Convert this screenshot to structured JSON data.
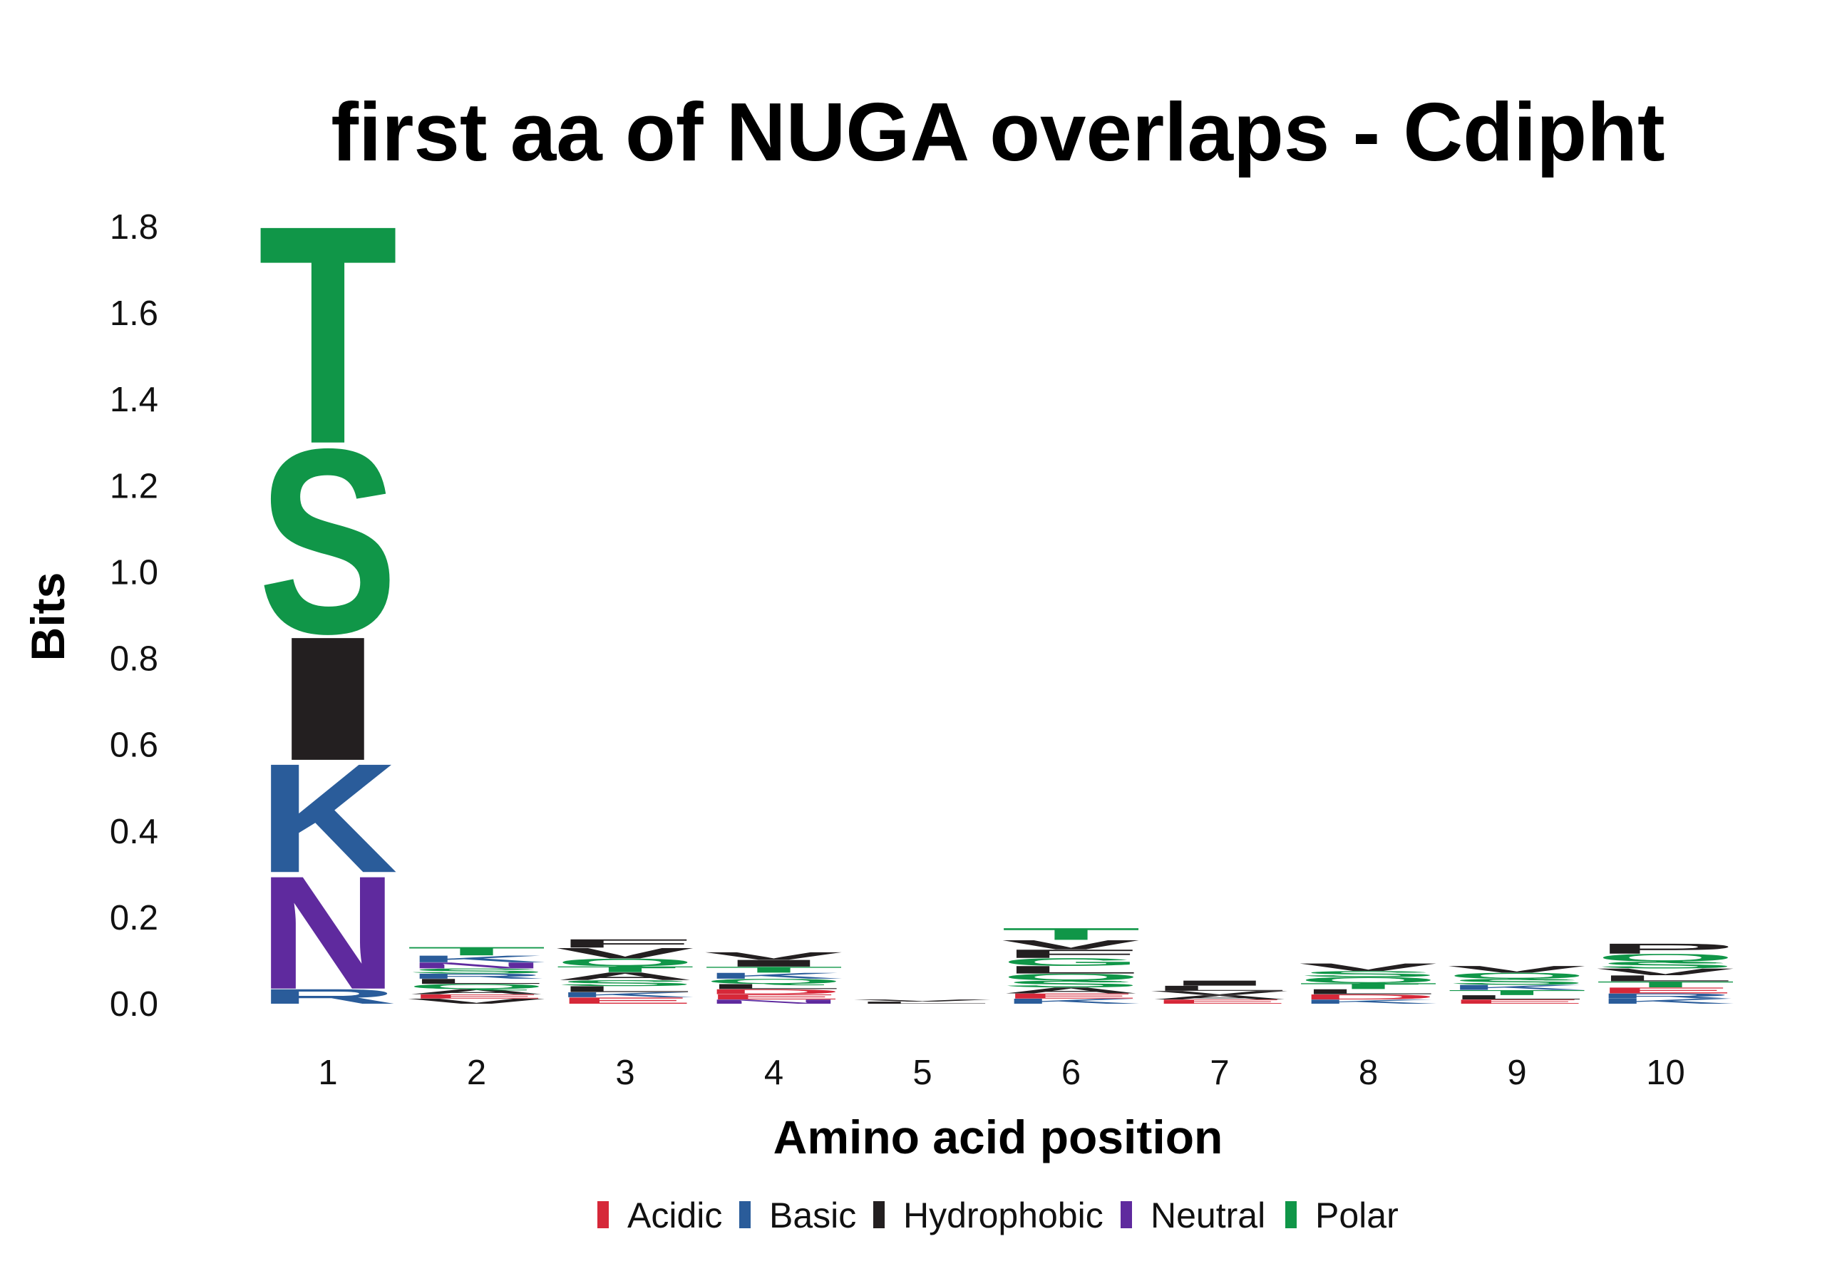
{
  "chart_data": {
    "type": "sequence-logo",
    "title": "first aa of NUGA overlaps - Cdipht",
    "xlabel": "Amino acid position",
    "ylabel": "Bits",
    "ylim": [
      0,
      1.8
    ],
    "yticks": [
      "0.0",
      "0.2",
      "0.4",
      "0.6",
      "0.8",
      "1.0",
      "1.2",
      "1.4",
      "1.6",
      "1.8"
    ],
    "positions": [
      "1",
      "2",
      "3",
      "4",
      "5",
      "6",
      "7",
      "8",
      "9",
      "10"
    ],
    "colors": {
      "Acidic": "#d62839",
      "Basic": "#2a5c9a",
      "Hydrophobic": "#231f20",
      "Neutral": "#5f2a9e",
      "Polar": "#109648"
    },
    "legend": [
      "Acidic",
      "Basic",
      "Hydrophobic",
      "Neutral",
      "Polar"
    ],
    "stacks": [
      {
        "position": "1",
        "letters": [
          {
            "aa": "R",
            "class": "Basic",
            "bits": 0.035
          },
          {
            "aa": "N",
            "class": "Neutral",
            "bits": 0.27
          },
          {
            "aa": "K",
            "class": "Basic",
            "bits": 0.26
          },
          {
            "aa": "I",
            "class": "Hydrophobic",
            "bits": 0.295
          },
          {
            "aa": "S",
            "class": "Polar",
            "bits": 0.44
          },
          {
            "aa": "T",
            "class": "Polar",
            "bits": 0.52
          }
        ]
      },
      {
        "position": "2",
        "letters": [
          {
            "aa": "V",
            "class": "Hydrophobic",
            "bits": 0.012
          },
          {
            "aa": "E",
            "class": "Acidic",
            "bits": 0.01
          },
          {
            "aa": "A",
            "class": "Hydrophobic",
            "bits": 0.012
          },
          {
            "aa": "Q",
            "class": "Polar",
            "bits": 0.012
          },
          {
            "aa": "L",
            "class": "Hydrophobic",
            "bits": 0.012
          },
          {
            "aa": "R",
            "class": "Basic",
            "bits": 0.012
          },
          {
            "aa": "S",
            "class": "Polar",
            "bits": 0.012
          },
          {
            "aa": "N",
            "class": "Neutral",
            "bits": 0.014
          },
          {
            "aa": "K",
            "class": "Basic",
            "bits": 0.016
          },
          {
            "aa": "T",
            "class": "Polar",
            "bits": 0.02
          }
        ]
      },
      {
        "position": "3",
        "letters": [
          {
            "aa": "E",
            "class": "Acidic",
            "bits": 0.015
          },
          {
            "aa": "K",
            "class": "Basic",
            "bits": 0.012
          },
          {
            "aa": "L",
            "class": "Hydrophobic",
            "bits": 0.014
          },
          {
            "aa": "S",
            "class": "Polar",
            "bits": 0.014
          },
          {
            "aa": "A",
            "class": "Hydrophobic",
            "bits": 0.018
          },
          {
            "aa": "T",
            "class": "Polar",
            "bits": 0.014
          },
          {
            "aa": "Q",
            "class": "Polar",
            "bits": 0.018
          },
          {
            "aa": "V",
            "class": "Hydrophobic",
            "bits": 0.025
          },
          {
            "aa": "F",
            "class": "Hydrophobic",
            "bits": 0.02
          }
        ]
      },
      {
        "position": "4",
        "letters": [
          {
            "aa": "N",
            "class": "Neutral",
            "bits": 0.01
          },
          {
            "aa": "E",
            "class": "Acidic",
            "bits": 0.012
          },
          {
            "aa": "D",
            "class": "Acidic",
            "bits": 0.012
          },
          {
            "aa": "L",
            "class": "Hydrophobic",
            "bits": 0.012
          },
          {
            "aa": "Q",
            "class": "Polar",
            "bits": 0.012
          },
          {
            "aa": "K",
            "class": "Basic",
            "bits": 0.014
          },
          {
            "aa": "T",
            "class": "Polar",
            "bits": 0.014
          },
          {
            "aa": "I",
            "class": "Hydrophobic",
            "bits": 0.016
          },
          {
            "aa": "V",
            "class": "Hydrophobic",
            "bits": 0.018
          }
        ]
      },
      {
        "position": "5",
        "letters": [
          {
            "aa": "L",
            "class": "Hydrophobic",
            "bits": 0.005
          },
          {
            "aa": "V",
            "class": "Hydrophobic",
            "bits": 0.005
          }
        ]
      },
      {
        "position": "6",
        "letters": [
          {
            "aa": "K",
            "class": "Basic",
            "bits": 0.012
          },
          {
            "aa": "E",
            "class": "Acidic",
            "bits": 0.012
          },
          {
            "aa": "A",
            "class": "Hydrophobic",
            "bits": 0.014
          },
          {
            "aa": "S",
            "class": "Polar",
            "bits": 0.016
          },
          {
            "aa": "Q",
            "class": "Polar",
            "bits": 0.016
          },
          {
            "aa": "L",
            "class": "Hydrophobic",
            "bits": 0.018
          },
          {
            "aa": "G",
            "class": "Polar",
            "bits": 0.018
          },
          {
            "aa": "F",
            "class": "Hydrophobic",
            "bits": 0.02
          },
          {
            "aa": "V",
            "class": "Hydrophobic",
            "bits": 0.022
          },
          {
            "aa": "T",
            "class": "Polar",
            "bits": 0.028
          }
        ]
      },
      {
        "position": "7",
        "letters": [
          {
            "aa": "E",
            "class": "Acidic",
            "bits": 0.01
          },
          {
            "aa": "A",
            "class": "Hydrophobic",
            "bits": 0.01
          },
          {
            "aa": "V",
            "class": "Hydrophobic",
            "bits": 0.01
          },
          {
            "aa": "L",
            "class": "Hydrophobic",
            "bits": 0.012
          },
          {
            "aa": "I",
            "class": "Hydrophobic",
            "bits": 0.012
          }
        ]
      },
      {
        "position": "8",
        "letters": [
          {
            "aa": "K",
            "class": "Basic",
            "bits": 0.01
          },
          {
            "aa": "D",
            "class": "Acidic",
            "bits": 0.012
          },
          {
            "aa": "L",
            "class": "Hydrophobic",
            "bits": 0.012
          },
          {
            "aa": "T",
            "class": "Polar",
            "bits": 0.014
          },
          {
            "aa": "Q",
            "class": "Polar",
            "bits": 0.014
          },
          {
            "aa": "S",
            "class": "Polar",
            "bits": 0.014
          },
          {
            "aa": "V",
            "class": "Hydrophobic",
            "bits": 0.018
          }
        ]
      },
      {
        "position": "9",
        "letters": [
          {
            "aa": "E",
            "class": "Acidic",
            "bits": 0.01
          },
          {
            "aa": "L",
            "class": "Hydrophobic",
            "bits": 0.01
          },
          {
            "aa": "T",
            "class": "Polar",
            "bits": 0.012
          },
          {
            "aa": "K",
            "class": "Basic",
            "bits": 0.012
          },
          {
            "aa": "S",
            "class": "Polar",
            "bits": 0.014
          },
          {
            "aa": "Q",
            "class": "Polar",
            "bits": 0.014
          },
          {
            "aa": "V",
            "class": "Hydrophobic",
            "bits": 0.016
          }
        ]
      },
      {
        "position": "10",
        "letters": [
          {
            "aa": "K",
            "class": "Basic",
            "bits": 0.012
          },
          {
            "aa": "R",
            "class": "Basic",
            "bits": 0.012
          },
          {
            "aa": "E",
            "class": "Acidic",
            "bits": 0.014
          },
          {
            "aa": "T",
            "class": "Polar",
            "bits": 0.014
          },
          {
            "aa": "L",
            "class": "Hydrophobic",
            "bits": 0.014
          },
          {
            "aa": "V",
            "class": "Hydrophobic",
            "bits": 0.016
          },
          {
            "aa": "S",
            "class": "Polar",
            "bits": 0.016
          },
          {
            "aa": "Q",
            "class": "Polar",
            "bits": 0.018
          },
          {
            "aa": "P",
            "class": "Hydrophobic",
            "bits": 0.024
          }
        ]
      }
    ]
  }
}
